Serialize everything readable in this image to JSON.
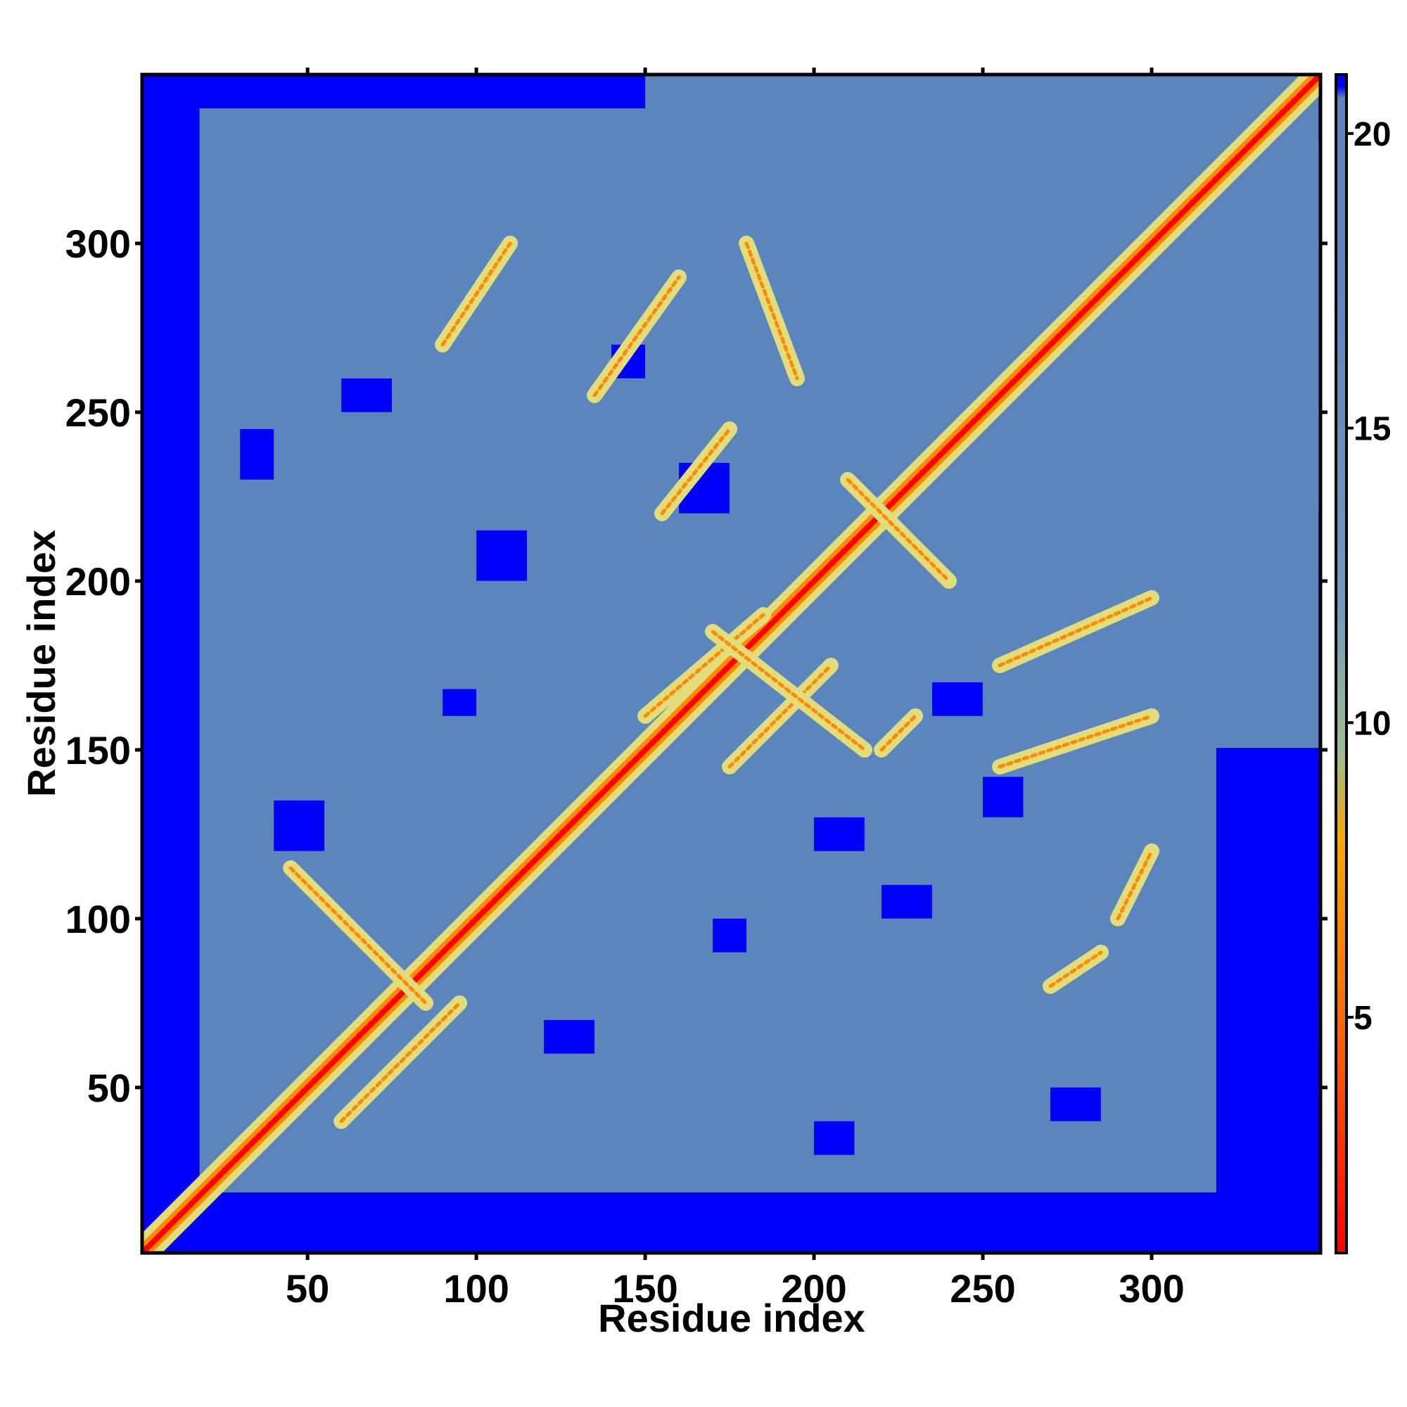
{
  "chart_data": {
    "type": "heatmap",
    "title": "",
    "xlabel": "Residue index",
    "ylabel": "Residue index",
    "xlim": [
      1,
      350
    ],
    "ylim": [
      1,
      350
    ],
    "xticks": [
      50,
      100,
      150,
      200,
      250,
      300
    ],
    "yticks": [
      50,
      100,
      150,
      200,
      250,
      300
    ],
    "colorbar": {
      "range": [
        1,
        21
      ],
      "ticks": [
        5,
        10,
        15,
        20
      ],
      "colors": [
        {
          "value": 1,
          "color": "#ff0000"
        },
        {
          "value": 5,
          "color": "#ff6a00"
        },
        {
          "value": 8,
          "color": "#ffa500"
        },
        {
          "value": 9.5,
          "color": "#9dbf8c"
        },
        {
          "value": 12,
          "color": "#6f9ac2"
        },
        {
          "value": 18,
          "color": "#5a86bd"
        },
        {
          "value": 21,
          "color": "#0000ff"
        }
      ]
    },
    "colors": {
      "far": "#0000ff",
      "mid": "#5a86bd",
      "near": "#e3dc7a",
      "contact": "#ff8a00",
      "diagonal": "#ff0000"
    }
  }
}
